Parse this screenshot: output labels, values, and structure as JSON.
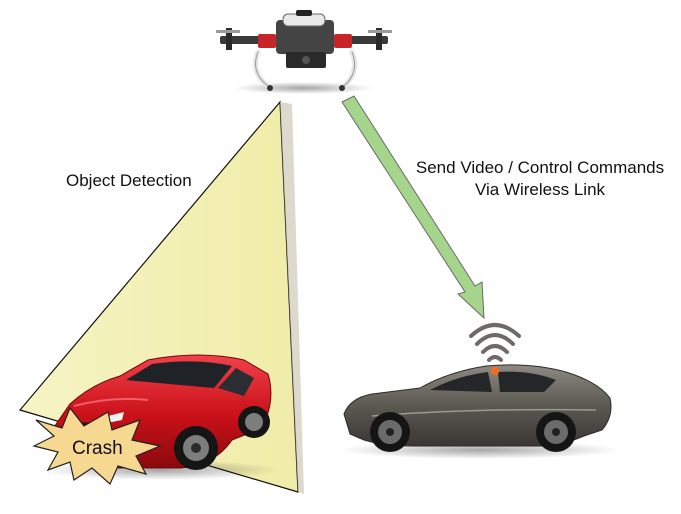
{
  "labels": {
    "object_detection": "Object Detection",
    "send_line1": "Send Video / Control Commands",
    "send_line2": "Via Wireless Link",
    "crash": "Crash"
  },
  "colors": {
    "detection_cone_fill": "#f4f2b8",
    "wireless_arrow_fill": "#a5d58b",
    "red_car": "#d0161d",
    "gray_car": "#5e5a55",
    "crash_burst": "#f7d890",
    "wifi_signal": "#6e6a67",
    "wifi_dot": "#ff6a1a"
  },
  "icons": {
    "drone": "drone-icon",
    "red_car": "red-car-icon",
    "gray_car": "gray-car-icon",
    "wireless": "wifi-signal-icon",
    "crash": "crash-burst-icon"
  }
}
